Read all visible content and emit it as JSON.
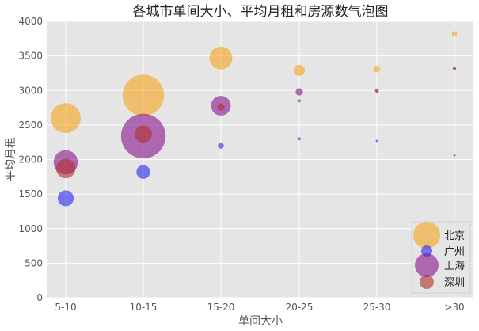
{
  "chart_data": {
    "type": "scatter",
    "title": "各城市单间大小、平均月租和房源数气泡图",
    "xlabel": "单间大小",
    "ylabel": "平均月租",
    "categories": [
      "5-10",
      "10-15",
      "15-20",
      "20-25",
      "25-30",
      ">30"
    ],
    "ylim": [
      0,
      4000
    ],
    "yticks": [
      0,
      500,
      1000,
      1500,
      2000,
      2500,
      3000,
      3500,
      4000
    ],
    "grid": true,
    "legend_position": "bottom-right",
    "series": [
      {
        "name": "北京",
        "color": "#f5a623",
        "values": [
          2600,
          2930,
          3470,
          3290,
          3310,
          3820
        ],
        "sizes": [
          1000,
          1900,
          580,
          140,
          50,
          30
        ]
      },
      {
        "name": "广州",
        "color": "#2b2bf0",
        "values": [
          1440,
          1820,
          2200,
          2300,
          2270,
          2060
        ],
        "sizes": [
          280,
          210,
          40,
          10,
          5,
          4
        ]
      },
      {
        "name": "上海",
        "color": "#8b1a8f",
        "values": [
          1960,
          2340,
          2780,
          2980,
          3000,
          3320
        ],
        "sizes": [
          650,
          2200,
          430,
          60,
          18,
          12
        ]
      },
      {
        "name": "深圳",
        "color": "#b03030",
        "values": [
          1870,
          2370,
          2760,
          2850,
          2980,
          3310
        ],
        "sizes": [
          420,
          330,
          60,
          12,
          5,
          4
        ]
      }
    ]
  }
}
